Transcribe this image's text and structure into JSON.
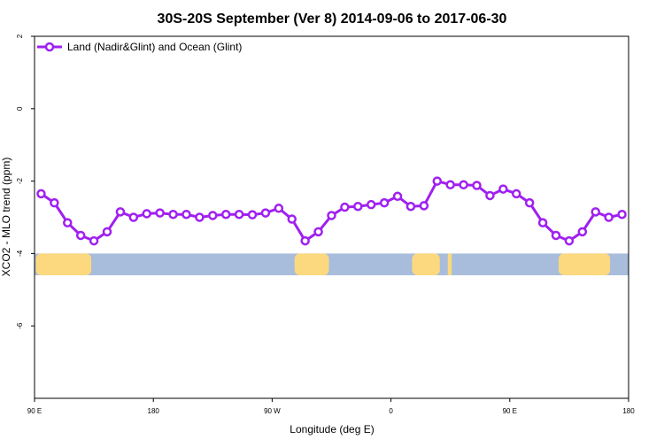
{
  "chart_data": {
    "type": "line",
    "title": "30S-20S September (Ver 8)   2014-09-06 to 2017-06-30",
    "xlabel": "Longitude (deg E)",
    "ylabel": "XCO2 - MLO trend (ppm)",
    "xlim": [
      90,
      540
    ],
    "ylim": [
      -8,
      2
    ],
    "x_ticks": [
      {
        "value": 90,
        "label": "90 E"
      },
      {
        "value": 180,
        "label": "180"
      },
      {
        "value": 270,
        "label": "90 W"
      },
      {
        "value": 360,
        "label": "0"
      },
      {
        "value": 450,
        "label": "90 E"
      },
      {
        "value": 540,
        "label": "180"
      }
    ],
    "y_ticks": [
      {
        "value": 2,
        "label": "2"
      },
      {
        "value": 0,
        "label": "0"
      },
      {
        "value": -2,
        "label": "-2"
      },
      {
        "value": -4,
        "label": "-4"
      },
      {
        "value": -6,
        "label": "-6"
      }
    ],
    "grid": false,
    "legend_position": "top-left",
    "series": [
      {
        "name": "Land (Nadir&Glint) and Ocean (Glint)",
        "color": "#a020f0",
        "x": [
          95,
          105,
          115,
          125,
          135,
          145,
          155,
          165,
          175,
          185,
          195,
          205,
          215,
          225,
          235,
          245,
          255,
          265,
          275,
          285,
          295,
          305,
          315,
          325,
          335,
          345,
          355,
          365,
          375,
          385,
          395,
          405,
          415,
          425,
          435,
          445,
          455,
          465,
          475,
          485,
          495,
          505,
          515,
          525,
          535
        ],
        "y": [
          -2.35,
          -2.6,
          -3.15,
          -3.5,
          -3.65,
          -3.4,
          -2.85,
          -3.0,
          -2.9,
          -2.88,
          -2.92,
          -2.92,
          -3.0,
          -2.95,
          -2.92,
          -2.92,
          -2.93,
          -2.88,
          -2.75,
          -3.05,
          -3.65,
          -3.4,
          -2.95,
          -2.72,
          -2.7,
          -2.65,
          -2.6,
          -2.42,
          -2.7,
          -2.68,
          -2.0,
          -2.1,
          -2.1,
          -2.12,
          -2.4,
          -2.22,
          -2.35,
          -2.6,
          -3.15,
          -3.5,
          -3.65,
          -3.4,
          -2.85,
          -3.0,
          -2.92
        ]
      }
    ],
    "map_strip": {
      "y_top": -4.0,
      "y_bottom": -4.6,
      "ocean_color": "#a8bcdc",
      "land_color": "#fcd97e",
      "land_segments": [
        [
          91,
          133
        ],
        [
          287,
          313
        ],
        [
          376,
          397
        ],
        [
          403,
          406
        ],
        [
          487,
          526
        ]
      ]
    }
  }
}
